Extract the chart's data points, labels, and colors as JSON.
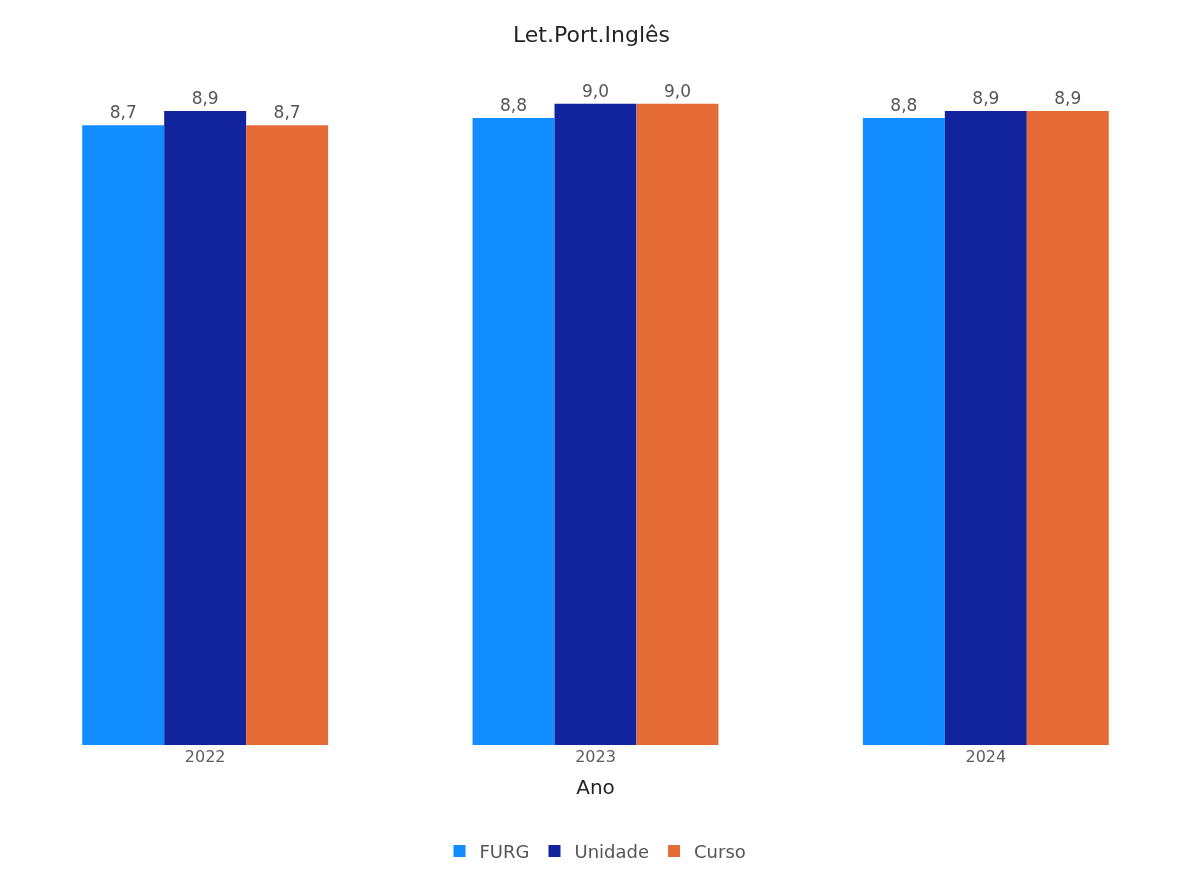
{
  "chart_data": {
    "type": "bar",
    "title": "Let.Port.Inglês",
    "xlabel": "Ano",
    "categories": [
      "2022",
      "2023",
      "2024"
    ],
    "series": [
      {
        "name": "FURG",
        "color": "#118dff",
        "values": [
          8.7,
          8.8,
          8.8
        ],
        "value_labels": [
          "8,7",
          "8,8",
          "8,8"
        ]
      },
      {
        "name": "Unidade",
        "color": "#12239e",
        "values": [
          8.9,
          9.0,
          8.9
        ],
        "value_labels": [
          "8,9",
          "9,0",
          "8,9"
        ]
      },
      {
        "name": "Curso",
        "color": "#e66c37",
        "values": [
          8.7,
          9.0,
          8.9
        ],
        "value_labels": [
          "8,7",
          "9,0",
          "8,9"
        ]
      }
    ],
    "grid": false,
    "legend": "bottom"
  }
}
